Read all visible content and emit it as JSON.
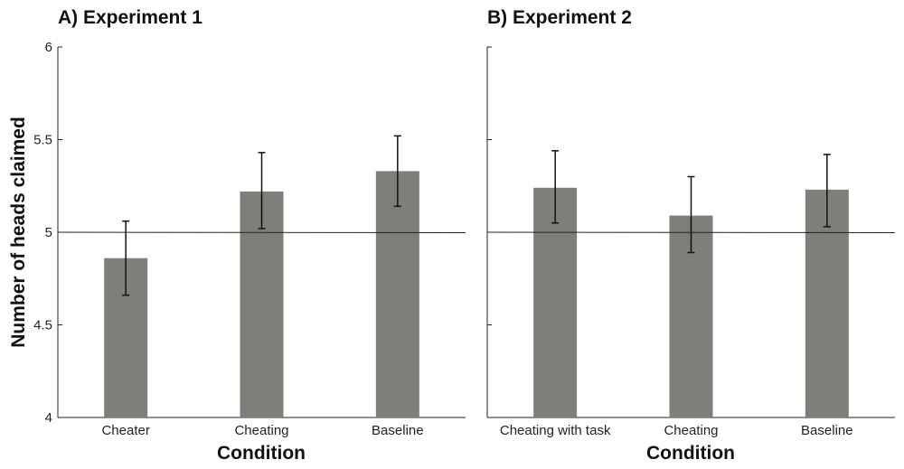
{
  "colors": {
    "bar": "#7f7e7b",
    "axis": "#222222"
  },
  "shared_ylabel": "Number of heads claimed",
  "chart_data": [
    {
      "type": "bar",
      "title": "A) Experiment 1",
      "xlabel": "Condition",
      "ylabel": "Number of heads claimed",
      "categories": [
        "Cheater",
        "Cheating",
        "Baseline"
      ],
      "values": [
        4.86,
        5.22,
        5.33
      ],
      "error_low": [
        4.66,
        5.02,
        5.14
      ],
      "error_high": [
        5.06,
        5.43,
        5.52
      ],
      "ylim": [
        4,
        6
      ],
      "yticks": [
        4,
        4.5,
        5,
        5.5,
        6
      ],
      "ytick_labels": [
        "4",
        "4.5",
        "5",
        "5.5",
        "6"
      ],
      "reference_line": 5,
      "grid": false
    },
    {
      "type": "bar",
      "title": "B) Experiment 2",
      "xlabel": "Condition",
      "categories": [
        "Cheating with task",
        "Cheating",
        "Baseline"
      ],
      "values": [
        5.24,
        5.09,
        5.23
      ],
      "error_low": [
        5.05,
        4.89,
        5.03
      ],
      "error_high": [
        5.44,
        5.3,
        5.42
      ],
      "ylim": [
        4,
        6
      ],
      "yticks": [
        4,
        4.5,
        5,
        5.5,
        6
      ],
      "reference_line": 5,
      "grid": false
    }
  ]
}
